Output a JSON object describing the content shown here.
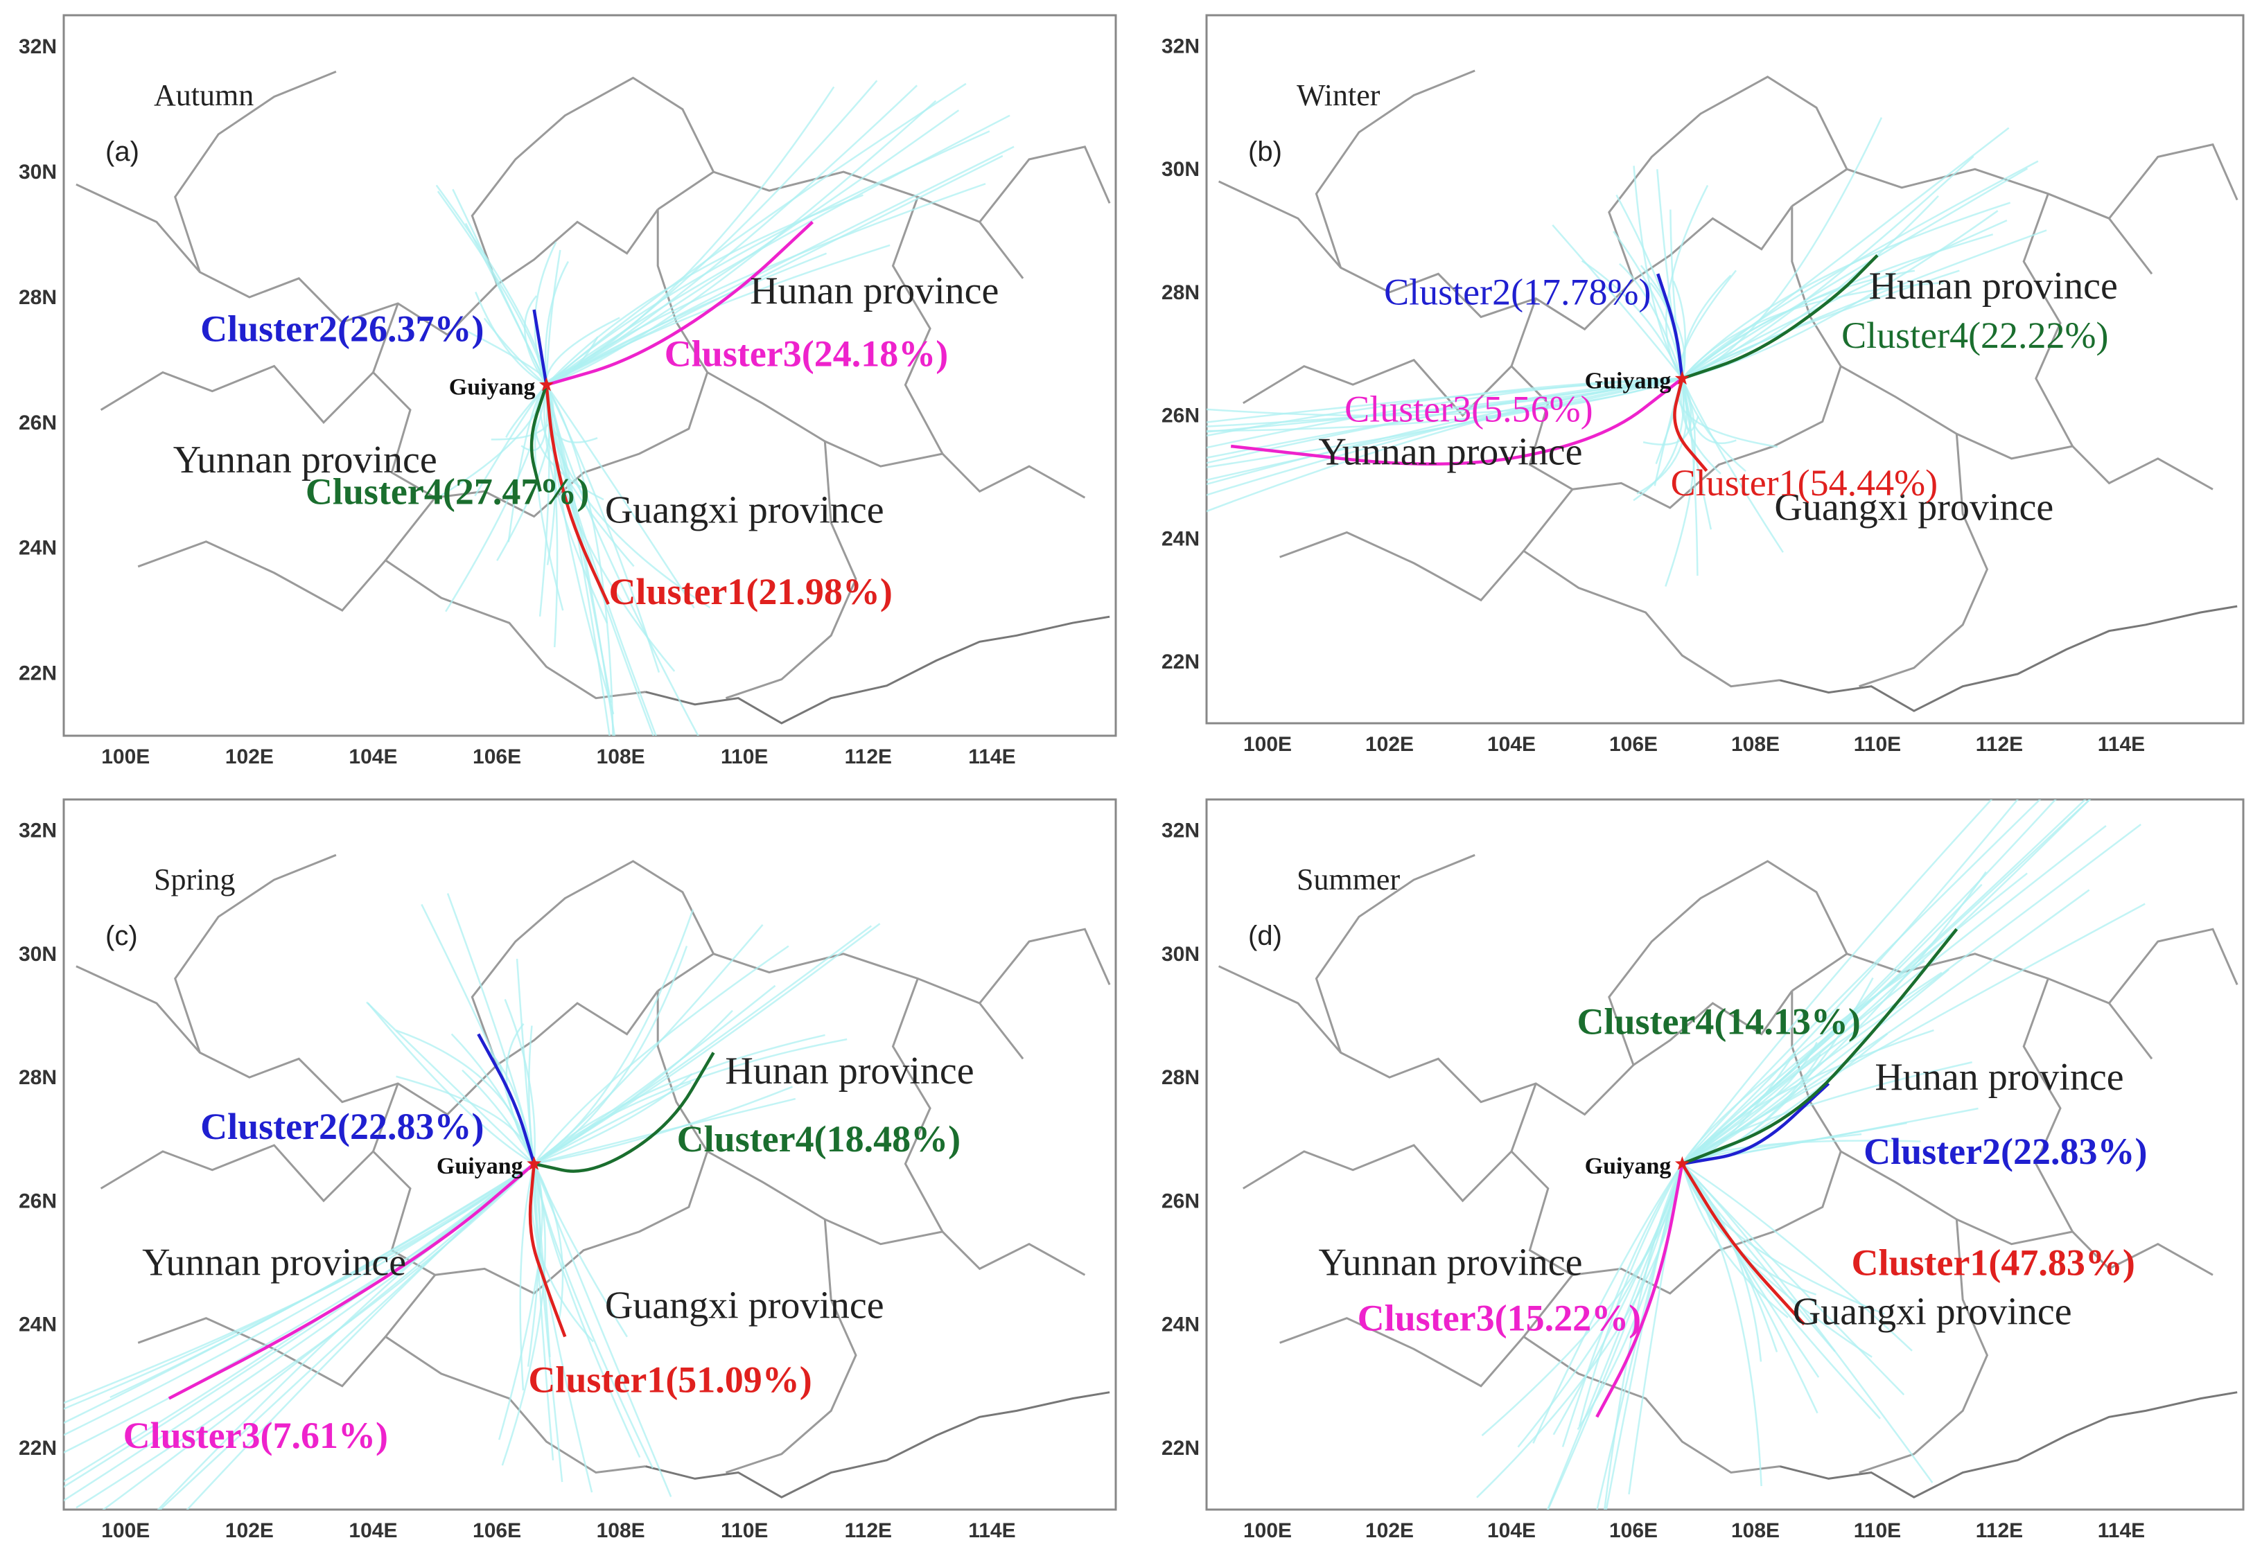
{
  "panels": [
    {
      "id": "a",
      "season": "Autumn",
      "letter": "(a)",
      "bold_labels": true,
      "city": "Guiyang",
      "provinces": [
        {
          "name": "Hunan province",
          "lon": 112.1,
          "lat": 27.9
        },
        {
          "name": "Yunnan province",
          "lon": 102.9,
          "lat": 25.2
        },
        {
          "name": "Guangxi province",
          "lon": 110.0,
          "lat": 24.4
        }
      ],
      "clusters": [
        {
          "name": "Cluster1(21.98%)",
          "color": "#e0201e",
          "label_lon": 110.1,
          "label_lat": 23.1,
          "path": [
            [
              106.8,
              26.6
            ],
            [
              106.9,
              25.6
            ],
            [
              107.2,
              24.4
            ],
            [
              107.8,
              23.1
            ]
          ]
        },
        {
          "name": "Cluster2(26.37%)",
          "color": "#1f1fd0",
          "label_lon": 103.5,
          "label_lat": 27.3,
          "path": [
            [
              106.8,
              26.6
            ],
            [
              106.7,
              27.2
            ],
            [
              106.6,
              27.8
            ]
          ]
        },
        {
          "name": "Cluster3(24.18%)",
          "color": "#ee22cc",
          "label_lon": 111.0,
          "label_lat": 26.9,
          "path": [
            [
              106.8,
              26.6
            ],
            [
              108.2,
              27.0
            ],
            [
              109.8,
              28.0
            ],
            [
              111.1,
              29.2
            ]
          ]
        },
        {
          "name": "Cluster4(27.47%)",
          "color": "#1a6e2e",
          "label_lon": 105.2,
          "label_lat": 24.7,
          "path": [
            [
              106.8,
              26.6
            ],
            [
              106.5,
              25.7
            ],
            [
              106.7,
              24.9
            ]
          ]
        }
      ]
    },
    {
      "id": "b",
      "season": "Winter",
      "letter": "(b)",
      "bold_labels": false,
      "city": "Guiyang",
      "provinces": [
        {
          "name": "Hunan province",
          "lon": 111.9,
          "lat": 27.9
        },
        {
          "name": "Yunnan province",
          "lon": 103.0,
          "lat": 25.2
        },
        {
          "name": "Guangxi province",
          "lon": 110.6,
          "lat": 24.3
        }
      ],
      "clusters": [
        {
          "name": "Cluster1(54.44%)",
          "color": "#e0201e",
          "label_lon": 108.8,
          "label_lat": 24.7,
          "path": [
            [
              106.8,
              26.6
            ],
            [
              106.6,
              25.8
            ],
            [
              107.2,
              25.1
            ]
          ]
        },
        {
          "name": "Cluster2(17.78%)",
          "color": "#1f1fd0",
          "label_lon": 104.1,
          "label_lat": 27.8,
          "path": [
            [
              106.8,
              26.6
            ],
            [
              106.7,
              27.4
            ],
            [
              106.4,
              28.3
            ]
          ]
        },
        {
          "name": "Cluster3(5.56%)",
          "color": "#ee22cc",
          "label_lon": 103.3,
          "label_lat": 25.9,
          "path": [
            [
              106.8,
              26.6
            ],
            [
              105.5,
              25.6
            ],
            [
              103.0,
              25.1
            ],
            [
              99.4,
              25.5
            ]
          ]
        },
        {
          "name": "Cluster4(22.22%)",
          "color": "#1a6e2e",
          "label_lon": 111.6,
          "label_lat": 27.1,
          "path": [
            [
              106.8,
              26.6
            ],
            [
              108.0,
              27.0
            ],
            [
              109.3,
              27.9
            ],
            [
              110.0,
              28.6
            ]
          ]
        }
      ]
    },
    {
      "id": "c",
      "season": "Spring",
      "letter": "(c)",
      "bold_labels": true,
      "city": "Guiyang",
      "provinces": [
        {
          "name": "Hunan province",
          "lon": 111.7,
          "lat": 27.9
        },
        {
          "name": "Yunnan province",
          "lon": 102.4,
          "lat": 24.8
        },
        {
          "name": "Guangxi province",
          "lon": 110.0,
          "lat": 24.1
        }
      ],
      "clusters": [
        {
          "name": "Cluster1(51.09%)",
          "color": "#e0201e",
          "label_lon": 108.8,
          "label_lat": 22.9,
          "path": [
            [
              106.6,
              26.6
            ],
            [
              106.5,
              25.5
            ],
            [
              106.8,
              24.6
            ],
            [
              107.1,
              23.8
            ]
          ]
        },
        {
          "name": "Cluster2(22.83%)",
          "color": "#1f1fd0",
          "label_lon": 103.5,
          "label_lat": 27.0,
          "path": [
            [
              106.6,
              26.6
            ],
            [
              106.3,
              27.6
            ],
            [
              105.7,
              28.7
            ]
          ]
        },
        {
          "name": "Cluster3(7.61%)",
          "color": "#ee22cc",
          "label_lon": 102.1,
          "label_lat": 22.0,
          "path": [
            [
              106.6,
              26.6
            ],
            [
              105.2,
              25.4
            ],
            [
              103.0,
              24.0
            ],
            [
              100.7,
              22.8
            ]
          ]
        },
        {
          "name": "Cluster4(18.48%)",
          "color": "#1a6e2e",
          "label_lon": 111.2,
          "label_lat": 26.8,
          "path": [
            [
              106.6,
              26.6
            ],
            [
              107.5,
              26.4
            ],
            [
              108.8,
              27.2
            ],
            [
              109.5,
              28.4
            ]
          ]
        }
      ]
    },
    {
      "id": "d",
      "season": "Summer",
      "letter": "(d)",
      "bold_labels": true,
      "city": "Guiyang",
      "provinces": [
        {
          "name": "Hunan province",
          "lon": 112.0,
          "lat": 27.8
        },
        {
          "name": "Yunnan province",
          "lon": 103.0,
          "lat": 24.8
        },
        {
          "name": "Guangxi province",
          "lon": 110.9,
          "lat": 24.0
        }
      ],
      "clusters": [
        {
          "name": "Cluster1(47.83%)",
          "color": "#e0201e",
          "label_lon": 111.9,
          "label_lat": 24.8,
          "path": [
            [
              106.8,
              26.6
            ],
            [
              107.6,
              25.3
            ],
            [
              108.8,
              24.0
            ]
          ]
        },
        {
          "name": "Cluster2(22.83%)",
          "color": "#1f1fd0",
          "label_lon": 112.1,
          "label_lat": 26.6,
          "path": [
            [
              106.8,
              26.6
            ],
            [
              108.0,
              26.8
            ],
            [
              109.2,
              27.9
            ]
          ]
        },
        {
          "name": "Cluster3(15.22%)",
          "color": "#ee22cc",
          "label_lon": 103.8,
          "label_lat": 23.9,
          "path": [
            [
              106.8,
              26.6
            ],
            [
              106.5,
              25.0
            ],
            [
              106.0,
              23.6
            ],
            [
              105.4,
              22.5
            ]
          ]
        },
        {
          "name": "Cluster4(14.13%)",
          "color": "#1a6e2e",
          "label_lon": 107.4,
          "label_lat": 28.7,
          "path": [
            [
              106.8,
              26.6
            ],
            [
              108.6,
              27.3
            ],
            [
              110.0,
              28.8
            ],
            [
              111.3,
              30.4
            ]
          ]
        }
      ]
    }
  ],
  "axis": {
    "x_ticks": [
      "100E",
      "102E",
      "104E",
      "106E",
      "108E",
      "110E",
      "112E",
      "114E"
    ],
    "x_values": [
      100,
      102,
      104,
      106,
      108,
      110,
      112,
      114
    ],
    "y_ticks": [
      "22N",
      "24N",
      "26N",
      "28N",
      "30N",
      "32N"
    ],
    "y_values": [
      22,
      24,
      26,
      28,
      30,
      32
    ],
    "lon_range": [
      99,
      116
    ],
    "lat_range": [
      21,
      32.5
    ]
  },
  "colors": {
    "trajectory": "#aef0f2",
    "boundary": "#9a9a9a",
    "city_marker": "#e0201e"
  }
}
